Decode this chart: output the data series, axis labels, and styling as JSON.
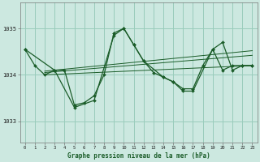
{
  "title": "Graphe pression niveau de la mer (hPa)",
  "background_color": "#cce8e0",
  "grid_color": "#99ccbb",
  "line_color": "#1a5c28",
  "x_ticks": [
    0,
    1,
    2,
    3,
    4,
    5,
    6,
    7,
    8,
    9,
    10,
    11,
    12,
    13,
    14,
    15,
    16,
    17,
    18,
    19,
    20,
    21,
    22,
    23
  ],
  "y_ticks": [
    1033,
    1034,
    1035
  ],
  "ylim": [
    1032.55,
    1035.55
  ],
  "xlim": [
    -0.5,
    23.5
  ],
  "series1_x": [
    0,
    1,
    2,
    3,
    4,
    5,
    6,
    7,
    8,
    9,
    10,
    11,
    12,
    13,
    14,
    15,
    16,
    17,
    18,
    19,
    20,
    21,
    22,
    23
  ],
  "series1_y": [
    1034.55,
    1034.2,
    1034.0,
    1034.1,
    1034.1,
    1033.35,
    1033.4,
    1033.55,
    1034.0,
    1034.9,
    1035.0,
    1034.65,
    1034.3,
    1034.05,
    1033.95,
    1033.85,
    1033.7,
    1033.7,
    1034.2,
    1034.55,
    1034.1,
    1034.2,
    1034.2,
    1034.2
  ],
  "series2_x": [
    0,
    3,
    5,
    7,
    9,
    10,
    11,
    12,
    14,
    15,
    16,
    17,
    19,
    20,
    21,
    22,
    23
  ],
  "series2_y": [
    1034.55,
    1034.1,
    1033.3,
    1033.45,
    1034.85,
    1035.0,
    1034.65,
    1034.3,
    1033.95,
    1033.85,
    1033.65,
    1033.65,
    1034.55,
    1034.7,
    1034.1,
    1034.2,
    1034.2
  ],
  "trend1_x": [
    2,
    23
  ],
  "trend1_y": [
    1034.0,
    1034.2
  ],
  "trend2_x": [
    2,
    23
  ],
  "trend2_y": [
    1034.05,
    1034.42
  ],
  "trend3_x": [
    2,
    23
  ],
  "trend3_y": [
    1034.08,
    1034.52
  ]
}
